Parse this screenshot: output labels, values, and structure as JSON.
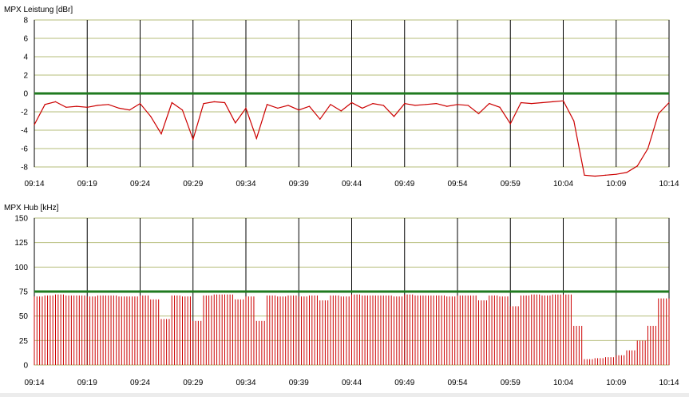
{
  "chart_data": [
    {
      "type": "line",
      "title": "MPX Leistung [dBr]",
      "xlabel": "",
      "ylabel": "",
      "x_ticks": [
        "09:14",
        "09:19",
        "09:24",
        "09:29",
        "09:34",
        "09:39",
        "09:44",
        "09:49",
        "09:54",
        "09:59",
        "10:04",
        "10:09",
        "10:14"
      ],
      "xlim": [
        "09:14",
        "10:14"
      ],
      "ylim": [
        -8,
        8
      ],
      "y_ticks": [
        8,
        6,
        4,
        2,
        0,
        -2,
        -4,
        -6,
        -8
      ],
      "grid": true,
      "threshold": 0,
      "series": [
        {
          "color": "#cc0000",
          "x": [
            "09:14",
            "09:15",
            "09:16",
            "09:17",
            "09:18",
            "09:19",
            "09:20",
            "09:21",
            "09:22",
            "09:23",
            "09:24",
            "09:25",
            "09:26",
            "09:27",
            "09:28",
            "09:29",
            "09:30",
            "09:31",
            "09:32",
            "09:33",
            "09:34",
            "09:35",
            "09:36",
            "09:37",
            "09:38",
            "09:39",
            "09:40",
            "09:41",
            "09:42",
            "09:43",
            "09:44",
            "09:45",
            "09:46",
            "09:47",
            "09:48",
            "09:49",
            "09:50",
            "09:51",
            "09:52",
            "09:53",
            "09:54",
            "09:55",
            "09:56",
            "09:57",
            "09:58",
            "09:59",
            "10:00",
            "10:01",
            "10:02",
            "10:03",
            "10:04",
            "10:05",
            "10:06",
            "10:07",
            "10:08",
            "10:09",
            "10:10",
            "10:11",
            "10:12",
            "10:13",
            "10:14"
          ],
          "y": [
            -3.4,
            -1.2,
            -0.9,
            -1.5,
            -1.4,
            -1.5,
            -1.3,
            -1.2,
            -1.6,
            -1.8,
            -1.1,
            -2.5,
            -4.4,
            -1.0,
            -1.8,
            -5.0,
            -1.1,
            -0.9,
            -1.0,
            -3.2,
            -1.6,
            -4.9,
            -1.2,
            -1.6,
            -1.3,
            -1.8,
            -1.4,
            -2.8,
            -1.2,
            -1.9,
            -1.0,
            -1.6,
            -1.1,
            -1.3,
            -2.5,
            -1.1,
            -1.3,
            -1.2,
            -1.1,
            -1.4,
            -1.2,
            -1.3,
            -2.2,
            -1.1,
            -1.5,
            -3.3,
            -1.0,
            -1.1,
            -1.0,
            -0.9,
            -0.8,
            -3.0,
            -8.9,
            -9.0,
            -8.9,
            -8.8,
            -8.6,
            -7.9,
            -6.0,
            -2.2,
            -1.0
          ]
        }
      ]
    },
    {
      "type": "bar",
      "title": "MPX Hub [kHz]",
      "xlabel": "",
      "ylabel": "",
      "x_ticks": [
        "09:14",
        "09:19",
        "09:24",
        "09:29",
        "09:34",
        "09:39",
        "09:44",
        "09:49",
        "09:54",
        "09:59",
        "10:04",
        "10:09",
        "10:14"
      ],
      "xlim": [
        "09:14",
        "10:14"
      ],
      "ylim": [
        0,
        150
      ],
      "y_ticks": [
        150,
        125,
        100,
        75,
        50,
        25,
        0
      ],
      "grid": true,
      "threshold": 75,
      "series": [
        {
          "color": "#cc0000",
          "x": [
            "09:14",
            "09:15",
            "09:16",
            "09:17",
            "09:18",
            "09:19",
            "09:20",
            "09:21",
            "09:22",
            "09:23",
            "09:24",
            "09:25",
            "09:26",
            "09:27",
            "09:28",
            "09:29",
            "09:30",
            "09:31",
            "09:32",
            "09:33",
            "09:34",
            "09:35",
            "09:36",
            "09:37",
            "09:38",
            "09:39",
            "09:40",
            "09:41",
            "09:42",
            "09:43",
            "09:44",
            "09:45",
            "09:46",
            "09:47",
            "09:48",
            "09:49",
            "09:50",
            "09:51",
            "09:52",
            "09:53",
            "09:54",
            "09:55",
            "09:56",
            "09:57",
            "09:58",
            "09:59",
            "10:00",
            "10:01",
            "10:02",
            "10:03",
            "10:04",
            "10:05",
            "10:06",
            "10:07",
            "10:08",
            "10:09",
            "10:10",
            "10:11",
            "10:12",
            "10:13",
            "10:14"
          ],
          "values": [
            70,
            71,
            72,
            71,
            71,
            70,
            71,
            71,
            70,
            70,
            71,
            67,
            47,
            71,
            70,
            45,
            71,
            72,
            72,
            67,
            70,
            45,
            71,
            70,
            71,
            70,
            71,
            66,
            71,
            70,
            72,
            71,
            71,
            71,
            70,
            72,
            71,
            71,
            71,
            70,
            71,
            71,
            66,
            71,
            70,
            60,
            71,
            72,
            71,
            72,
            72,
            40,
            6,
            7,
            8,
            10,
            15,
            25,
            40,
            68,
            68
          ]
        }
      ]
    }
  ]
}
